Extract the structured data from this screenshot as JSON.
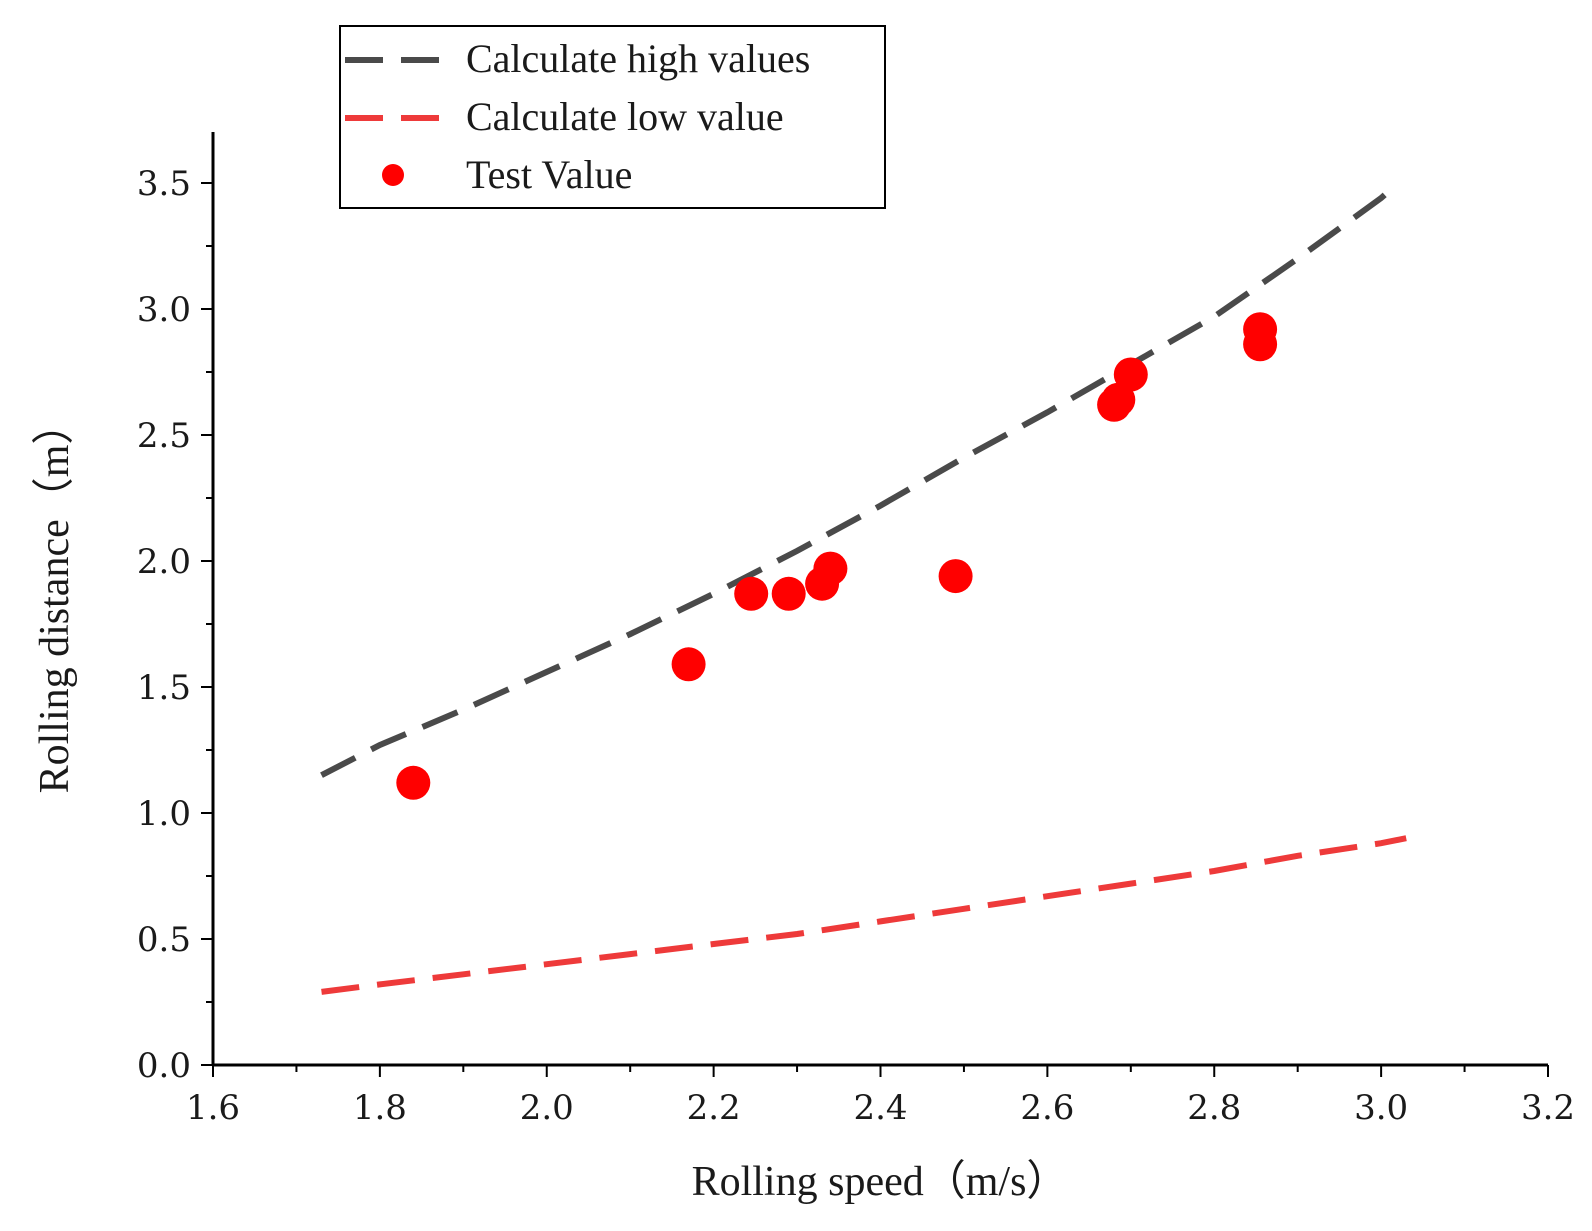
{
  "chart_data": {
    "type": "scatter",
    "title": "",
    "xlabel": "Rolling speed（m/s）",
    "ylabel": "Rolling distance（m）",
    "xlim": [
      1.6,
      3.2
    ],
    "ylim": [
      0.0,
      3.7
    ],
    "x_ticks": [
      1.6,
      1.8,
      2.0,
      2.2,
      2.4,
      2.6,
      2.8,
      3.0,
      3.2
    ],
    "x_tick_labels": [
      "1.6",
      "1.8",
      "2.0",
      "2.2",
      "2.4",
      "2.6",
      "2.8",
      "3.0",
      "3.2"
    ],
    "y_ticks": [
      0.0,
      0.5,
      1.0,
      1.5,
      2.0,
      2.5,
      3.0,
      3.5
    ],
    "y_tick_labels": [
      "0.0",
      "0.5",
      "1.0",
      "1.5",
      "2.0",
      "2.5",
      "3.0",
      "3.5"
    ],
    "grid": false,
    "legend_position": "top-left",
    "series": [
      {
        "name": "Calculate high values",
        "style": "dashed-line",
        "color": "#4a4a4a",
        "x": [
          1.73,
          1.8,
          1.9,
          2.0,
          2.1,
          2.2,
          2.3,
          2.4,
          2.5,
          2.6,
          2.7,
          2.8,
          2.9,
          3.0,
          3.02
        ],
        "y": [
          1.15,
          1.27,
          1.41,
          1.56,
          1.71,
          1.87,
          2.04,
          2.22,
          2.41,
          2.59,
          2.78,
          2.97,
          3.2,
          3.44,
          3.5
        ]
      },
      {
        "name": "Calculate low value",
        "style": "dashed-line",
        "color": "#ee3a3a",
        "x": [
          1.73,
          1.8,
          1.9,
          2.0,
          2.1,
          2.2,
          2.3,
          2.4,
          2.5,
          2.6,
          2.7,
          2.8,
          2.9,
          3.0,
          3.03
        ],
        "y": [
          0.29,
          0.32,
          0.36,
          0.4,
          0.44,
          0.48,
          0.52,
          0.57,
          0.62,
          0.67,
          0.72,
          0.77,
          0.83,
          0.88,
          0.9
        ]
      },
      {
        "name": "Test Value",
        "style": "marker",
        "color": "#ff0000",
        "x": [
          1.84,
          2.17,
          2.245,
          2.29,
          2.33,
          2.34,
          2.49,
          2.68,
          2.685,
          2.7,
          2.855,
          2.855
        ],
        "y": [
          1.12,
          1.59,
          1.87,
          1.87,
          1.91,
          1.97,
          1.94,
          2.62,
          2.64,
          2.74,
          2.92,
          2.86
        ]
      }
    ]
  }
}
